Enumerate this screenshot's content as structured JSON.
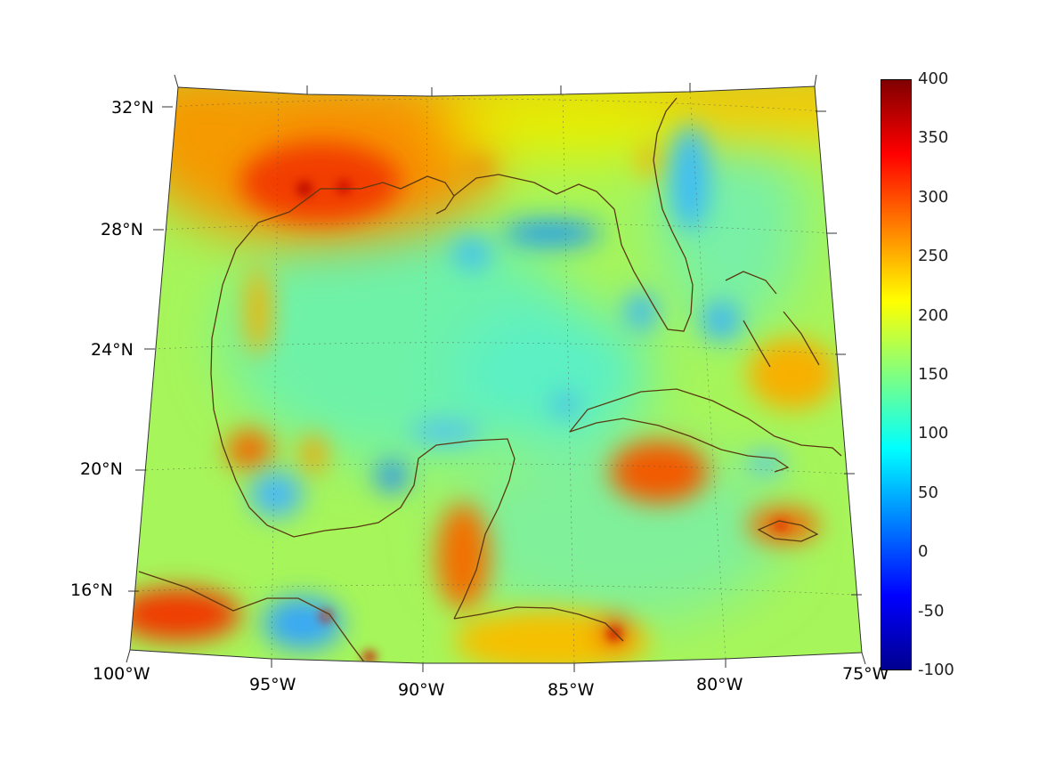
{
  "map": {
    "projection": "conic",
    "extent": {
      "lon": [
        -100,
        -75
      ],
      "lat": [
        14,
        33
      ]
    },
    "lat_labels": [
      "32°N",
      "28°N",
      "24°N",
      "20°N",
      "16°N"
    ],
    "lon_labels": [
      "100°W",
      "95°W",
      "90°W",
      "85°W",
      "80°W",
      "75°W"
    ],
    "coastline_color": "#5a3a10"
  },
  "colorbar": {
    "min": -100,
    "max": 400,
    "tick_labels": [
      "400",
      "350",
      "300",
      "250",
      "200",
      "150",
      "100",
      "50",
      "0",
      "-50",
      "-100"
    ],
    "colormap": "jet"
  }
}
